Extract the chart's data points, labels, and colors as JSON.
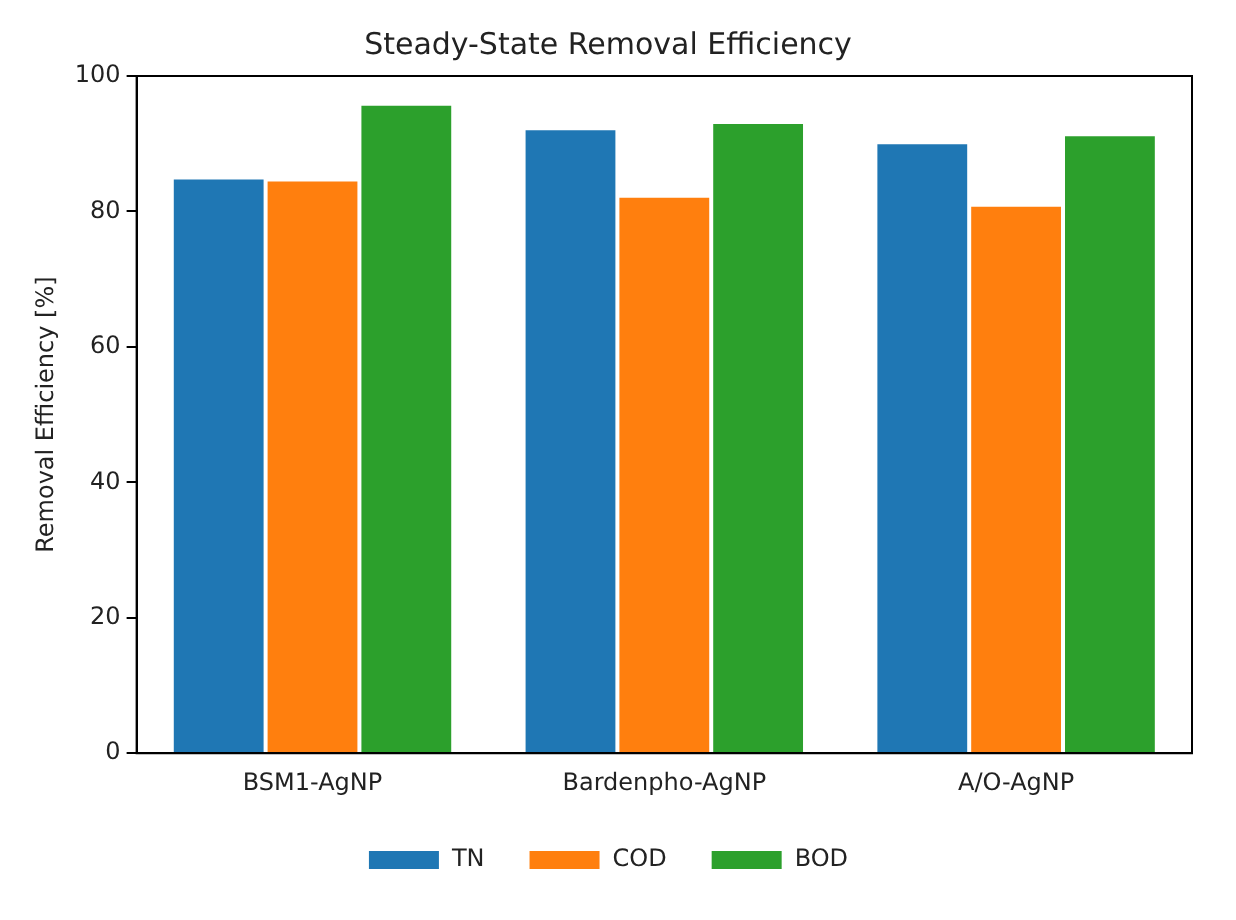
{
  "chart_data": {
    "type": "bar",
    "title": "Steady-State Removal Efficiency",
    "ylabel": "Removal Efficiency [%]",
    "categories": [
      "BSM1-AgNP",
      "Bardenpho-AgNP",
      "A/O-AgNP"
    ],
    "series": [
      {
        "name": "TN",
        "color": "#1f77b4",
        "values": [
          85,
          92.3,
          90.2
        ]
      },
      {
        "name": "COD",
        "color": "#ff7f0e",
        "values": [
          84.7,
          82.3,
          81
        ]
      },
      {
        "name": "BOD",
        "color": "#2ca02c",
        "values": [
          95.9,
          93.2,
          91.4
        ]
      }
    ],
    "ylim": [
      0,
      100
    ],
    "yticks": [
      0,
      20,
      40,
      60,
      80,
      100
    ],
    "grid": false,
    "legend": "bottom"
  }
}
